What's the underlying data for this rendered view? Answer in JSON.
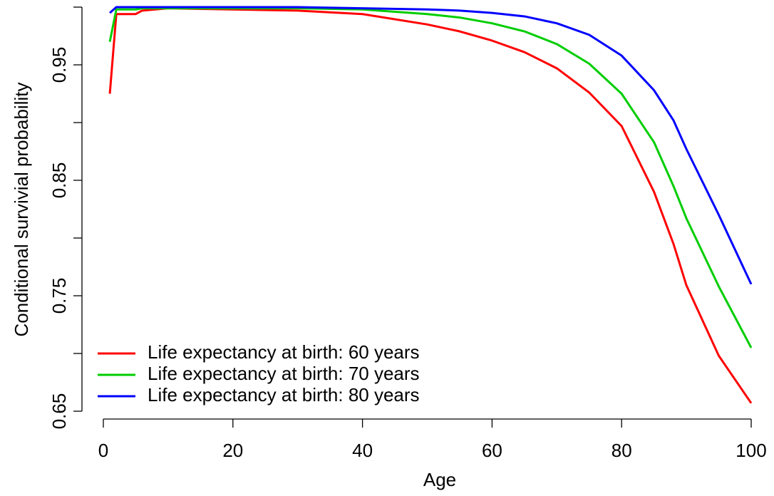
{
  "chart_data": {
    "type": "line",
    "x_label": "Age",
    "y_label": "Conditional survivial probability",
    "x": [
      1,
      2,
      5,
      6,
      10,
      20,
      30,
      40,
      50,
      55,
      60,
      65,
      70,
      75,
      80,
      85,
      88,
      90,
      95,
      100
    ],
    "series": [
      {
        "name": "Life expectancy at birth: 60 years",
        "color": "#ff0000",
        "values": [
          0.925,
          0.994,
          0.994,
          0.997,
          0.999,
          0.998,
          0.997,
          0.994,
          0.985,
          0.979,
          0.971,
          0.961,
          0.947,
          0.926,
          0.897,
          0.84,
          0.795,
          0.759,
          0.698,
          0.657
        ]
      },
      {
        "name": "Life expectancy at birth: 70 years",
        "color": "#00cd00",
        "values": [
          0.97,
          0.998,
          0.998,
          0.999,
          0.999,
          0.999,
          0.999,
          0.998,
          0.994,
          0.991,
          0.986,
          0.979,
          0.968,
          0.951,
          0.925,
          0.883,
          0.845,
          0.817,
          0.758,
          0.705
        ]
      },
      {
        "name": "Life expectancy at birth: 80 years",
        "color": "#0000ff",
        "values": [
          0.995,
          1.0,
          1.0,
          1.0,
          1.0,
          1.0,
          1.0,
          0.999,
          0.998,
          0.997,
          0.995,
          0.992,
          0.986,
          0.976,
          0.958,
          0.928,
          0.902,
          0.877,
          0.82,
          0.76
        ]
      }
    ],
    "xlim": [
      0,
      100
    ],
    "xticks": [
      0,
      20,
      40,
      60,
      80,
      100
    ],
    "ylim": [
      0.65,
      1.0
    ],
    "yticks": [
      0.65,
      0.75,
      0.85,
      0.95
    ],
    "yminor_ticks": [
      0.7,
      0.8,
      0.9,
      1.0
    ],
    "legend": "bottom-left",
    "grid": false
  }
}
